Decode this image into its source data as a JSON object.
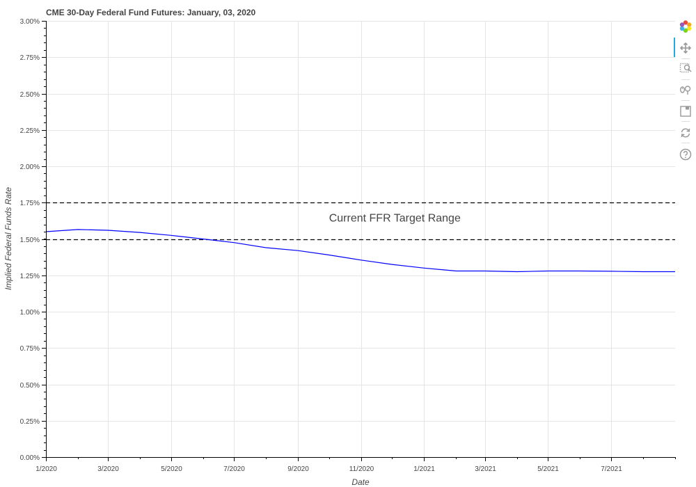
{
  "chart_data": {
    "type": "line",
    "title": "CME 30-Day Federal Fund Futures: January, 03, 2020",
    "xlabel": "Date",
    "ylabel": "Implied Federal Funds Rate",
    "xlim": [
      "2020-01-01",
      "2021-09-01"
    ],
    "ylim": [
      0,
      3.0
    ],
    "x_ticks": [
      {
        "date": "2020-01-01",
        "label": "1/2020"
      },
      {
        "date": "2020-03-01",
        "label": "3/2020"
      },
      {
        "date": "2020-05-01",
        "label": "5/2020"
      },
      {
        "date": "2020-07-01",
        "label": "7/2020"
      },
      {
        "date": "2020-09-01",
        "label": "9/2020"
      },
      {
        "date": "2020-11-01",
        "label": "11/2020"
      },
      {
        "date": "2021-01-01",
        "label": "1/2021"
      },
      {
        "date": "2021-03-01",
        "label": "3/2021"
      },
      {
        "date": "2021-05-01",
        "label": "5/2021"
      },
      {
        "date": "2021-07-01",
        "label": "7/2021"
      }
    ],
    "y_ticks": [
      {
        "value": 0.0,
        "label": "0.00%"
      },
      {
        "value": 0.25,
        "label": "0.25%"
      },
      {
        "value": 0.5,
        "label": "0.50%"
      },
      {
        "value": 0.75,
        "label": "0.75%"
      },
      {
        "value": 1.0,
        "label": "1.00%"
      },
      {
        "value": 1.25,
        "label": "1.25%"
      },
      {
        "value": 1.5,
        "label": "1.50%"
      },
      {
        "value": 1.75,
        "label": "1.75%"
      },
      {
        "value": 2.0,
        "label": "2.00%"
      },
      {
        "value": 2.25,
        "label": "2.25%"
      },
      {
        "value": 2.5,
        "label": "2.50%"
      },
      {
        "value": 2.75,
        "label": "2.75%"
      },
      {
        "value": 3.0,
        "label": "3.00%"
      }
    ],
    "grid": true,
    "series": [
      {
        "color": "#0000ff",
        "points": [
          {
            "x": "2020-01-01",
            "y": 1.55
          },
          {
            "x": "2020-02-01",
            "y": 1.565
          },
          {
            "x": "2020-03-01",
            "y": 1.56
          },
          {
            "x": "2020-04-01",
            "y": 1.545
          },
          {
            "x": "2020-05-01",
            "y": 1.525
          },
          {
            "x": "2020-06-01",
            "y": 1.5
          },
          {
            "x": "2020-07-01",
            "y": 1.475
          },
          {
            "x": "2020-08-01",
            "y": 1.44
          },
          {
            "x": "2020-09-01",
            "y": 1.42
          },
          {
            "x": "2020-10-01",
            "y": 1.39
          },
          {
            "x": "2020-11-01",
            "y": 1.355
          },
          {
            "x": "2020-12-01",
            "y": 1.325
          },
          {
            "x": "2021-01-01",
            "y": 1.3
          },
          {
            "x": "2021-02-01",
            "y": 1.28
          },
          {
            "x": "2021-03-01",
            "y": 1.28
          },
          {
            "x": "2021-04-01",
            "y": 1.275
          },
          {
            "x": "2021-05-01",
            "y": 1.28
          },
          {
            "x": "2021-06-01",
            "y": 1.28
          },
          {
            "x": "2021-07-01",
            "y": 1.278
          },
          {
            "x": "2021-08-01",
            "y": 1.275
          },
          {
            "x": "2021-09-01",
            "y": 1.275
          }
        ]
      }
    ],
    "reference_lines": [
      {
        "y": 1.75,
        "style": "dashed",
        "color": "#000000"
      },
      {
        "y": 1.5,
        "style": "dashed",
        "color": "#000000"
      }
    ],
    "annotations": [
      {
        "text": "Current FFR Target Range",
        "x": "2020-10-01",
        "y": 1.62
      }
    ]
  },
  "toolbar": {
    "tools": [
      {
        "name": "bokeh-logo",
        "icon": "bokeh-logo-icon"
      },
      {
        "name": "pan",
        "icon": "pan-icon",
        "active": true
      },
      {
        "name": "box-zoom",
        "icon": "box-zoom-icon"
      },
      {
        "name": "wheel-zoom",
        "icon": "wheel-zoom-icon"
      },
      {
        "name": "save",
        "icon": "save-icon"
      },
      {
        "name": "reset",
        "icon": "reset-icon"
      },
      {
        "name": "help",
        "icon": "help-icon"
      }
    ],
    "accent_color": "#26aae1"
  }
}
